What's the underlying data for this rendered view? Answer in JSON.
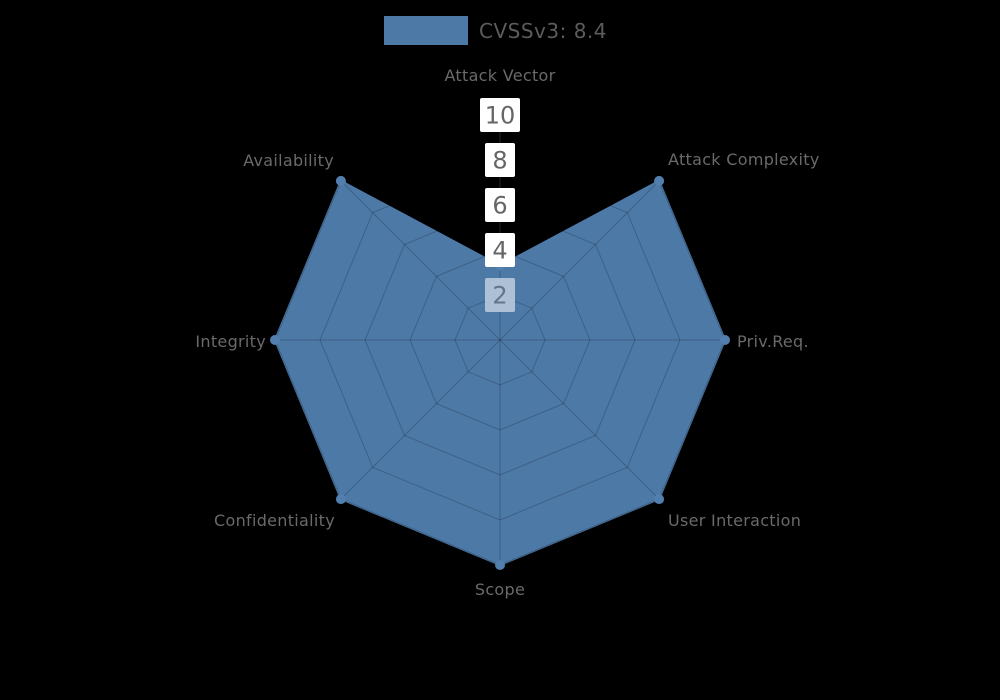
{
  "background_color": "#000000",
  "legend": {
    "label": "CVSSv3: 8.4",
    "swatch_color": "#4d79a7",
    "text_color": "#5c5c5c"
  },
  "chart_data": {
    "type": "radar",
    "title": "CVSSv3: 8.4",
    "legend_position": "top-center",
    "indicators": [
      "Attack Vector",
      "Attack Complexity",
      "Priv.Req.",
      "User Interaction",
      "Scope",
      "Confidentiality",
      "Integrity",
      "Availability"
    ],
    "series": [
      {
        "name": "CVSSv3: 8.4",
        "color": "#4d79a7",
        "values": [
          3.3,
          10,
          10,
          10,
          10,
          10,
          10,
          10
        ]
      }
    ],
    "scale": {
      "min": 0,
      "max": 10,
      "ticks": [
        2,
        4,
        6,
        8,
        10
      ]
    },
    "grid_shape": "polygon",
    "axis_label_color": "#6a6a6a",
    "tick_label_color": "#666666",
    "tick_box_color": "#ffffff",
    "tick_box_color_over_fill": "#adc0d5",
    "tick_text_color_over_fill": "#64758a",
    "grid_line_color": "rgba(0,0,0,0.2)",
    "axis_underlay_line_color": "#2f2f2f"
  }
}
